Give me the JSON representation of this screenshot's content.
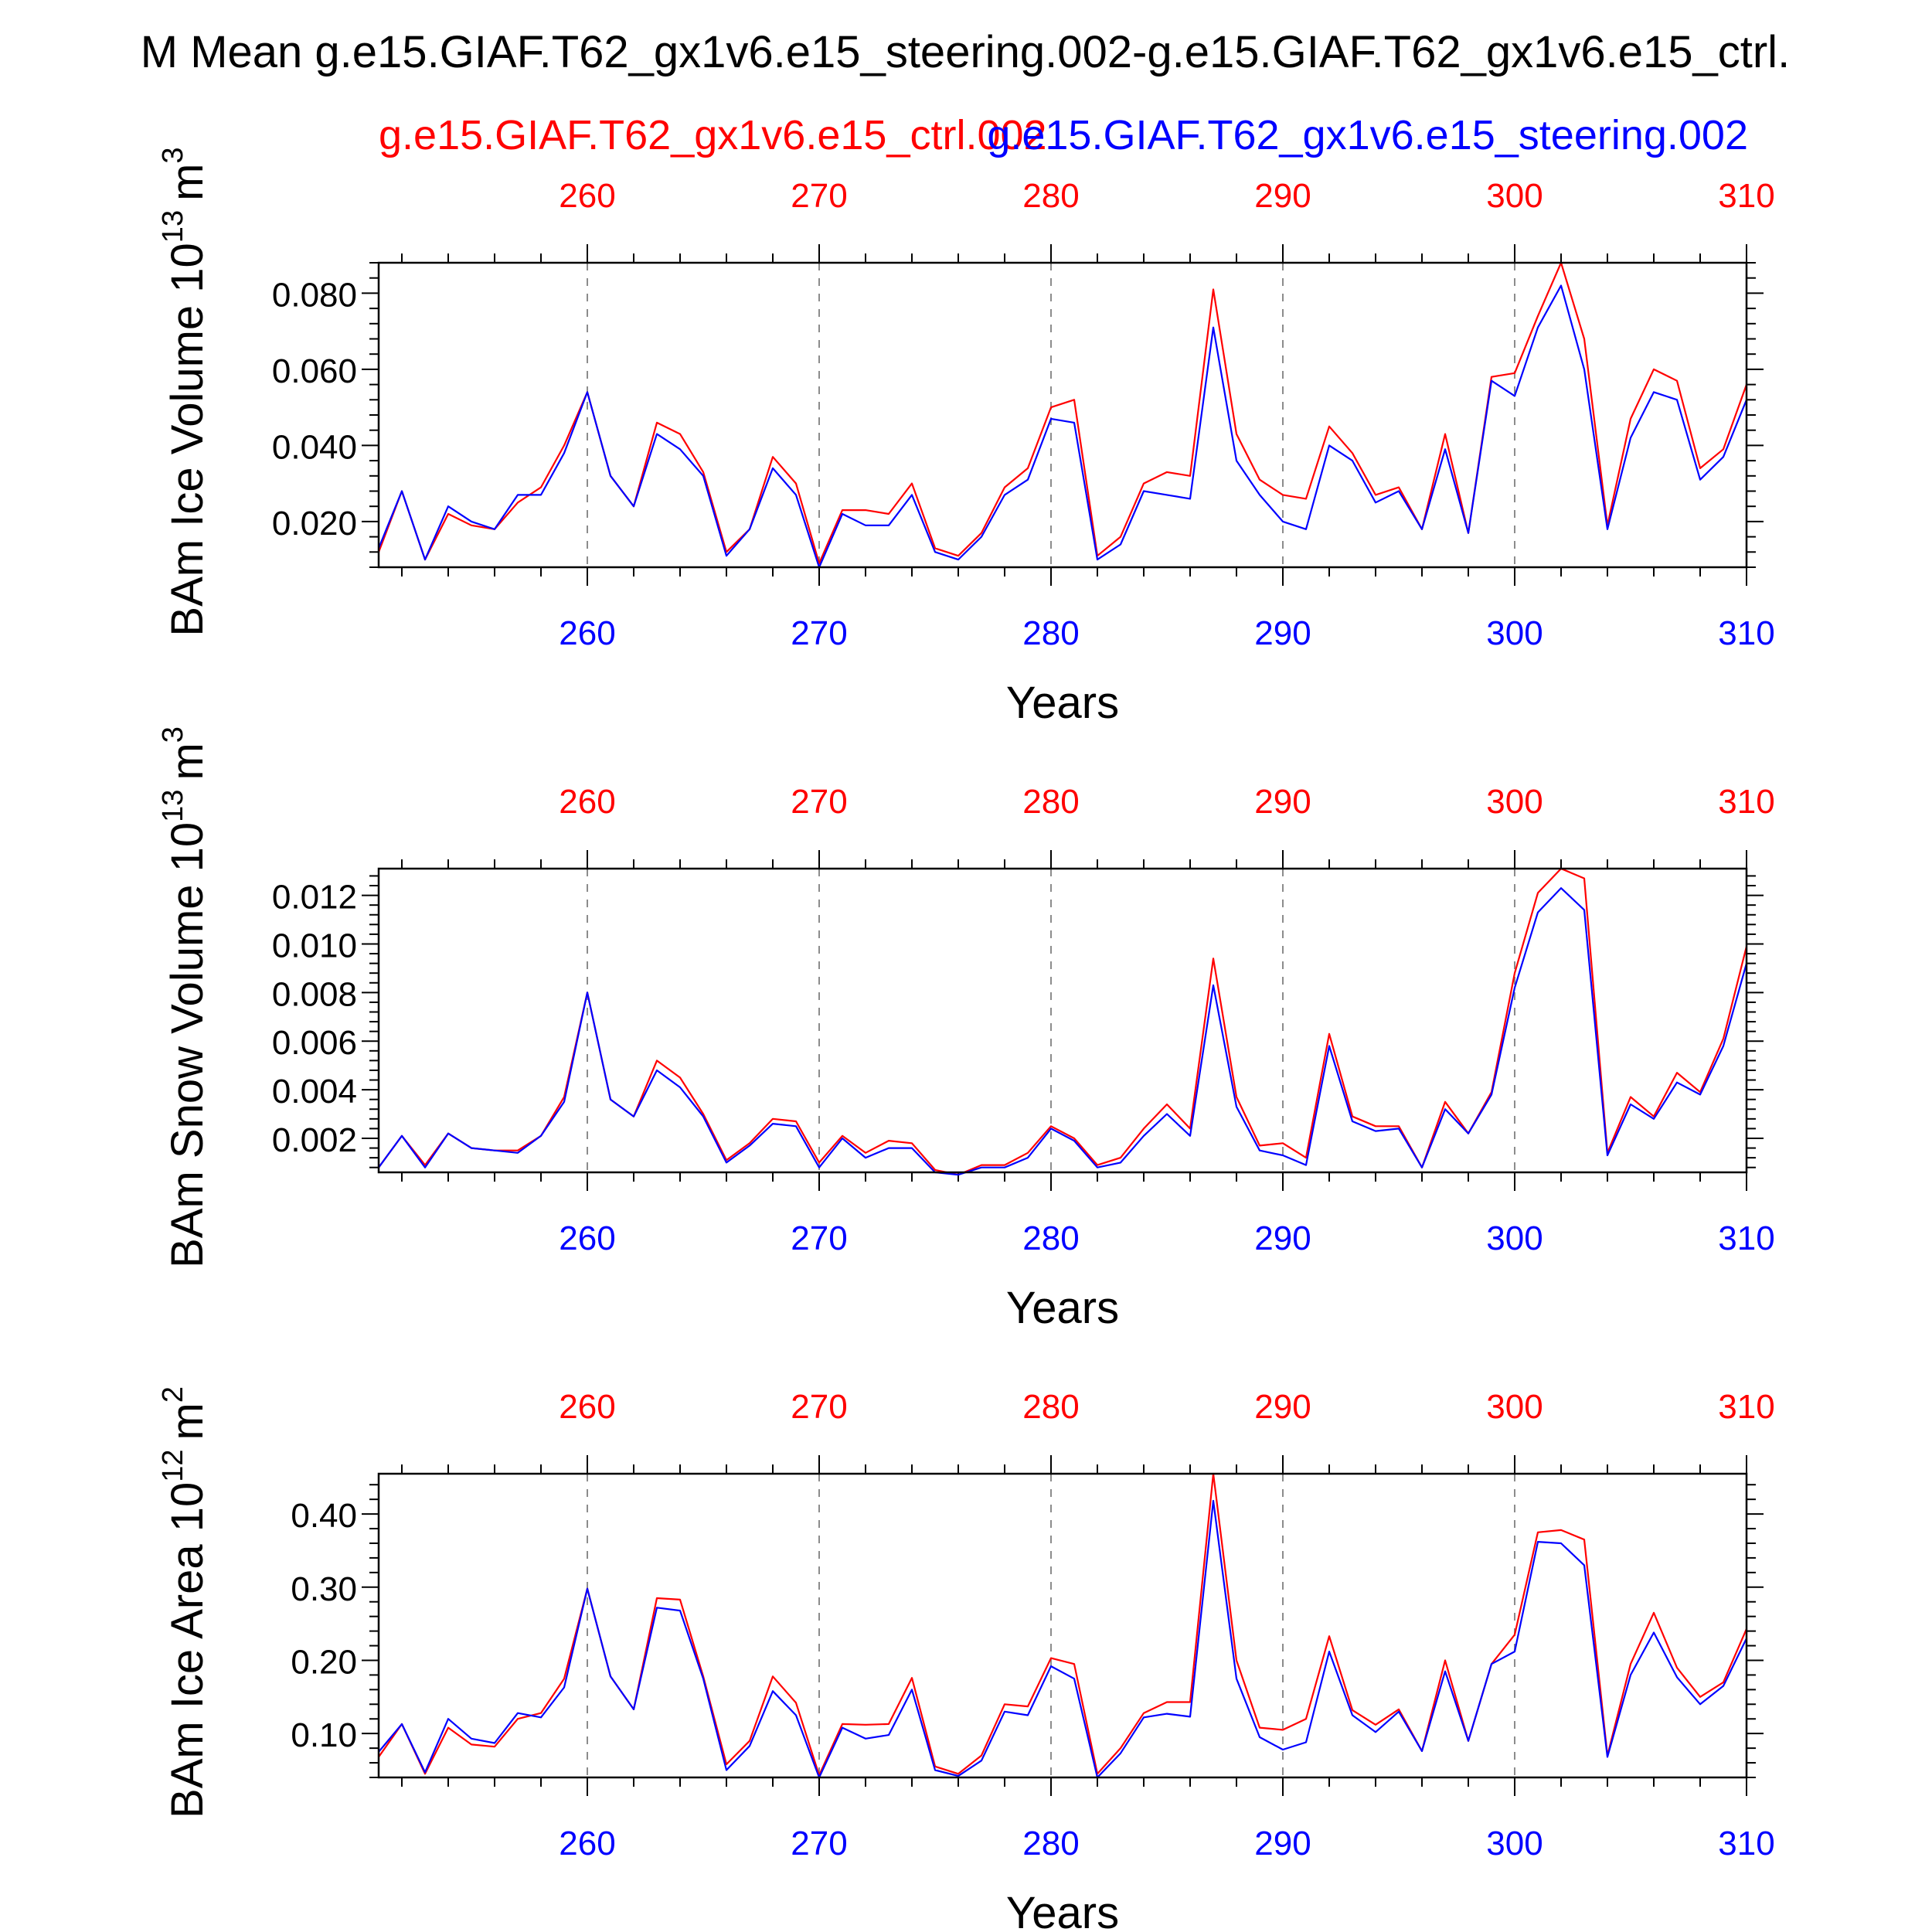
{
  "title": "M Mean g.e15.GIAF.T62_gx1v6.e15_steering.002-g.e15.GIAF.T62_gx1v6.e15_ctrl.",
  "legend": {
    "red_label": "g.e15.GIAF.T62_gx1v6.e15_ctrl.002",
    "blue_label": "g.e15.GIAF.T62_gx1v6.e15_steering.002"
  },
  "colors": {
    "red": "#ff0000",
    "blue": "#0000ff",
    "axis": "#000000",
    "grid": "#8c8c8c"
  },
  "chart_data": [
    {
      "type": "line",
      "title": "",
      "xlabel": "Years",
      "ylabel": "BAm Ice Volume 10",
      "ylabel_exp": "13",
      "ylabel_unit": "m",
      "ylabel_unit_exp": "3",
      "xlim": [
        251,
        310
      ],
      "ylim": [
        0.008,
        0.088
      ],
      "xticks": [
        260,
        270,
        280,
        290,
        300,
        310
      ],
      "yticks": [
        0.02,
        0.04,
        0.06,
        0.08
      ],
      "ytick_labels": [
        "0.020",
        "0.040",
        "0.060",
        "0.080"
      ],
      "x": [
        251,
        252,
        253,
        254,
        255,
        256,
        257,
        258,
        259,
        260,
        261,
        262,
        263,
        264,
        265,
        266,
        267,
        268,
        269,
        270,
        271,
        272,
        273,
        274,
        275,
        276,
        277,
        278,
        279,
        280,
        281,
        282,
        283,
        284,
        285,
        286,
        287,
        288,
        289,
        290,
        291,
        292,
        293,
        294,
        295,
        296,
        297,
        298,
        299,
        300,
        301,
        302,
        303,
        304,
        305,
        306,
        307,
        308,
        309,
        310
      ],
      "series": [
        {
          "name": "g.e15.GIAF.T62_gx1v6.e15_ctrl.002",
          "color": "#ff0000",
          "values": [
            0.012,
            0.028,
            0.01,
            0.022,
            0.019,
            0.018,
            0.025,
            0.029,
            0.04,
            0.054,
            0.032,
            0.024,
            0.046,
            0.043,
            0.033,
            0.012,
            0.018,
            0.037,
            0.03,
            0.009,
            0.023,
            0.023,
            0.022,
            0.03,
            0.013,
            0.011,
            0.017,
            0.029,
            0.034,
            0.05,
            0.052,
            0.011,
            0.016,
            0.03,
            0.033,
            0.032,
            0.081,
            0.043,
            0.031,
            0.027,
            0.026,
            0.045,
            0.038,
            0.027,
            0.029,
            0.018,
            0.043,
            0.017,
            0.058,
            0.059,
            0.074,
            0.088,
            0.068,
            0.019,
            0.047,
            0.06,
            0.057,
            0.034,
            0.039,
            0.056
          ]
        },
        {
          "name": "g.e15.GIAF.T62_gx1v6.e15_steering.002",
          "color": "#0000ff",
          "values": [
            0.013,
            0.028,
            0.01,
            0.024,
            0.02,
            0.018,
            0.027,
            0.027,
            0.038,
            0.054,
            0.032,
            0.024,
            0.043,
            0.039,
            0.032,
            0.011,
            0.018,
            0.034,
            0.027,
            0.008,
            0.022,
            0.019,
            0.019,
            0.027,
            0.012,
            0.01,
            0.016,
            0.027,
            0.031,
            0.047,
            0.046,
            0.01,
            0.014,
            0.028,
            0.027,
            0.026,
            0.071,
            0.036,
            0.027,
            0.02,
            0.018,
            0.04,
            0.036,
            0.025,
            0.028,
            0.018,
            0.039,
            0.017,
            0.057,
            0.053,
            0.071,
            0.082,
            0.06,
            0.018,
            0.042,
            0.054,
            0.052,
            0.031,
            0.037,
            0.052
          ]
        }
      ]
    },
    {
      "type": "line",
      "title": "",
      "xlabel": "Years",
      "ylabel": "BAm Snow Volume 10",
      "ylabel_exp": "13",
      "ylabel_unit": "m",
      "ylabel_unit_exp": "3",
      "xlim": [
        251,
        310
      ],
      "ylim": [
        0.0006,
        0.0131
      ],
      "xticks": [
        260,
        270,
        280,
        290,
        300,
        310
      ],
      "yticks": [
        0.002,
        0.004,
        0.006,
        0.008,
        0.01,
        0.012
      ],
      "ytick_labels": [
        "0.002",
        "0.004",
        "0.006",
        "0.008",
        "0.010",
        "0.012"
      ],
      "x": [
        251,
        252,
        253,
        254,
        255,
        256,
        257,
        258,
        259,
        260,
        261,
        262,
        263,
        264,
        265,
        266,
        267,
        268,
        269,
        270,
        271,
        272,
        273,
        274,
        275,
        276,
        277,
        278,
        279,
        280,
        281,
        282,
        283,
        284,
        285,
        286,
        287,
        288,
        289,
        290,
        291,
        292,
        293,
        294,
        295,
        296,
        297,
        298,
        299,
        300,
        301,
        302,
        303,
        304,
        305,
        306,
        307,
        308,
        309,
        310
      ],
      "series": [
        {
          "name": "g.e15.GIAF.T62_gx1v6.e15_ctrl.002",
          "color": "#ff0000",
          "values": [
            0.0008,
            0.0021,
            0.0009,
            0.0022,
            0.0016,
            0.0015,
            0.0015,
            0.0021,
            0.0037,
            0.008,
            0.0036,
            0.0029,
            0.0052,
            0.0045,
            0.003,
            0.0011,
            0.0018,
            0.0028,
            0.0027,
            0.001,
            0.0021,
            0.0014,
            0.0019,
            0.0018,
            0.0007,
            0.0005,
            0.0009,
            0.0009,
            0.0014,
            0.0025,
            0.002,
            0.0009,
            0.0012,
            0.0024,
            0.0034,
            0.0024,
            0.0094,
            0.0037,
            0.0017,
            0.0018,
            0.0012,
            0.0063,
            0.0029,
            0.0025,
            0.0025,
            0.0008,
            0.0035,
            0.0022,
            0.0039,
            0.0088,
            0.0121,
            0.0131,
            0.0127,
            0.0014,
            0.0037,
            0.0029,
            0.0047,
            0.0039,
            0.0061,
            0.0099
          ]
        },
        {
          "name": "g.e15.GIAF.T62_gx1v6.e15_steering.002",
          "color": "#0000ff",
          "values": [
            0.0008,
            0.0021,
            0.0008,
            0.0022,
            0.0016,
            0.0015,
            0.0014,
            0.0021,
            0.0035,
            0.008,
            0.0036,
            0.0029,
            0.0048,
            0.0041,
            0.0029,
            0.001,
            0.0017,
            0.0026,
            0.0025,
            0.0008,
            0.002,
            0.0012,
            0.0016,
            0.0016,
            0.0006,
            0.0005,
            0.0008,
            0.0008,
            0.0012,
            0.0024,
            0.0019,
            0.0008,
            0.001,
            0.0021,
            0.003,
            0.0021,
            0.0083,
            0.0033,
            0.0015,
            0.0013,
            0.0009,
            0.0058,
            0.0027,
            0.0023,
            0.0024,
            0.0008,
            0.0032,
            0.0022,
            0.0038,
            0.0082,
            0.0113,
            0.0123,
            0.0114,
            0.0013,
            0.0034,
            0.0028,
            0.0043,
            0.0038,
            0.0058,
            0.0092
          ]
        }
      ]
    },
    {
      "type": "line",
      "title": "",
      "xlabel": "Years",
      "ylabel": "BAm Ice Area 10",
      "ylabel_exp": "12",
      "ylabel_unit": "m",
      "ylabel_unit_exp": "2",
      "xlim": [
        251,
        310
      ],
      "ylim": [
        0.04,
        0.455
      ],
      "xticks": [
        260,
        270,
        280,
        290,
        300,
        310
      ],
      "yticks": [
        0.1,
        0.2,
        0.3,
        0.4
      ],
      "ytick_labels": [
        "0.10",
        "0.20",
        "0.30",
        "0.40"
      ],
      "x": [
        251,
        252,
        253,
        254,
        255,
        256,
        257,
        258,
        259,
        260,
        261,
        262,
        263,
        264,
        265,
        266,
        267,
        268,
        269,
        270,
        271,
        272,
        273,
        274,
        275,
        276,
        277,
        278,
        279,
        280,
        281,
        282,
        283,
        284,
        285,
        286,
        287,
        288,
        289,
        290,
        291,
        292,
        293,
        294,
        295,
        296,
        297,
        298,
        299,
        300,
        301,
        302,
        303,
        304,
        305,
        306,
        307,
        308,
        309,
        310
      ],
      "series": [
        {
          "name": "g.e15.GIAF.T62_gx1v6.e15_ctrl.002",
          "color": "#ff0000",
          "values": [
            0.068,
            0.113,
            0.045,
            0.108,
            0.085,
            0.082,
            0.12,
            0.128,
            0.175,
            0.298,
            0.178,
            0.133,
            0.285,
            0.283,
            0.178,
            0.058,
            0.09,
            0.178,
            0.142,
            0.043,
            0.113,
            0.112,
            0.113,
            0.176,
            0.055,
            0.045,
            0.07,
            0.14,
            0.137,
            0.203,
            0.195,
            0.045,
            0.08,
            0.128,
            0.143,
            0.143,
            0.455,
            0.2,
            0.108,
            0.105,
            0.12,
            0.233,
            0.132,
            0.112,
            0.133,
            0.076,
            0.2,
            0.09,
            0.195,
            0.235,
            0.375,
            0.378,
            0.365,
            0.07,
            0.195,
            0.265,
            0.19,
            0.15,
            0.17,
            0.243
          ]
        },
        {
          "name": "g.e15.GIAF.T62_gx1v6.e15_steering.002",
          "color": "#0000ff",
          "values": [
            0.075,
            0.113,
            0.047,
            0.12,
            0.093,
            0.087,
            0.128,
            0.122,
            0.163,
            0.298,
            0.178,
            0.133,
            0.272,
            0.268,
            0.175,
            0.05,
            0.083,
            0.158,
            0.125,
            0.04,
            0.108,
            0.093,
            0.098,
            0.16,
            0.05,
            0.042,
            0.063,
            0.13,
            0.125,
            0.192,
            0.175,
            0.04,
            0.073,
            0.122,
            0.127,
            0.123,
            0.418,
            0.175,
            0.095,
            0.078,
            0.088,
            0.212,
            0.125,
            0.102,
            0.13,
            0.076,
            0.185,
            0.09,
            0.195,
            0.212,
            0.362,
            0.36,
            0.33,
            0.068,
            0.18,
            0.238,
            0.177,
            0.14,
            0.165,
            0.23
          ]
        }
      ]
    }
  ]
}
